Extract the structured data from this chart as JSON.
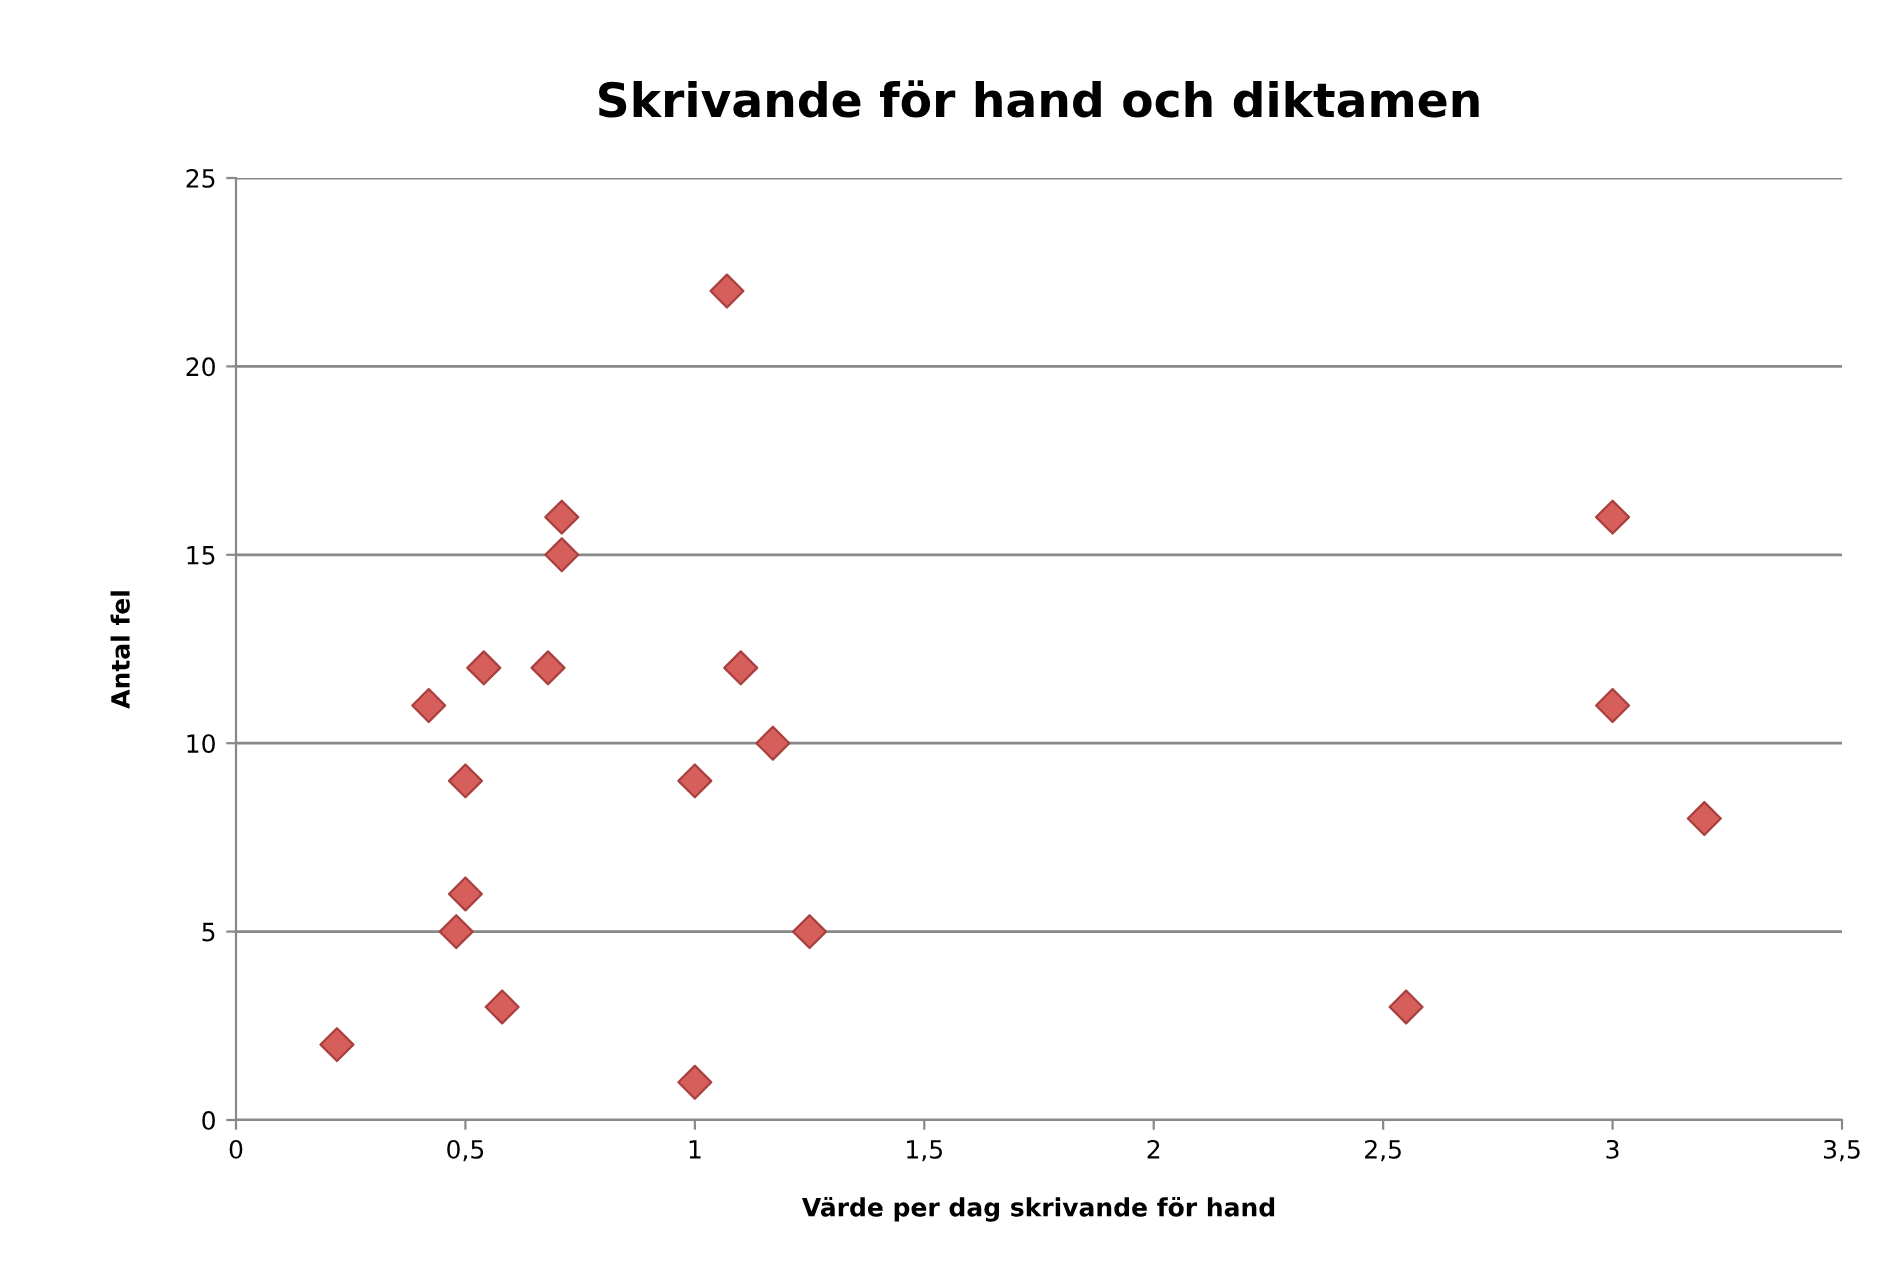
{
  "chart_data": {
    "type": "scatter",
    "title": "Skrivande för hand och diktamen",
    "xlabel": "Värde per dag skrivande för hand",
    "ylabel": "Antal fel",
    "series": [
      {
        "color": "#d65f5c",
        "x": [
          0.22,
          0.42,
          0.5,
          0.54,
          0.68,
          0.71,
          0.71,
          0.5,
          0.48,
          0.58,
          1.0,
          1.0,
          1.07,
          1.1,
          1.17,
          1.25,
          2.55,
          3.0,
          3.0,
          3.2
        ],
        "values": [
          2,
          11,
          9,
          12,
          12,
          16,
          15,
          6,
          5,
          3,
          1,
          9,
          22,
          12,
          10,
          5,
          3,
          16,
          11,
          8
        ]
      }
    ],
    "xlim": [
      0,
      3.5
    ],
    "xticks": [
      {
        "value": 0,
        "label": "0"
      },
      {
        "value": 0.5,
        "label": "0,5"
      },
      {
        "value": 1,
        "label": "1"
      },
      {
        "value": 1.5,
        "label": "1,5"
      },
      {
        "value": 2,
        "label": "2"
      },
      {
        "value": 2.5,
        "label": "2,5"
      },
      {
        "value": 3,
        "label": "3"
      },
      {
        "value": 3.5,
        "label": "3,5"
      }
    ],
    "ylim": [
      0,
      25
    ],
    "yticks": [
      0,
      5,
      10,
      15,
      20,
      25
    ],
    "grid": "y",
    "marker": "diamond",
    "legend": false
  }
}
